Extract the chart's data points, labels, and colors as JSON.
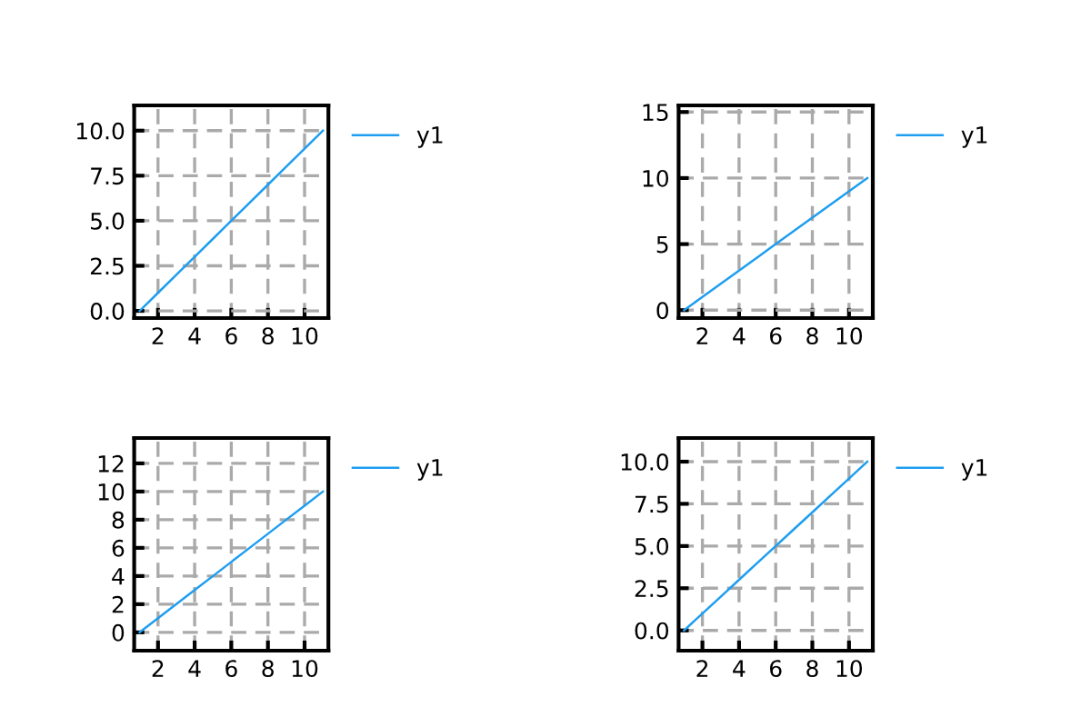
{
  "chart_data": [
    {
      "type": "line",
      "x": [
        1,
        2,
        3,
        4,
        5,
        6,
        7,
        8,
        9,
        10,
        11
      ],
      "series": [
        {
          "name": "y1",
          "color": "#1e9ef0",
          "values": [
            0,
            1,
            2,
            3,
            4,
            5,
            6,
            7,
            8,
            9,
            10
          ]
        }
      ],
      "xlim": [
        0.7,
        11.3
      ],
      "xticks": [
        2,
        4,
        6,
        8,
        10
      ],
      "ylim": [
        -0.4,
        11.4
      ],
      "yticks": [
        {
          "value": 0,
          "label": "0.0"
        },
        {
          "value": 2.5,
          "label": "2.5"
        },
        {
          "value": 5,
          "label": "5.0"
        },
        {
          "value": 7.5,
          "label": "7.5"
        },
        {
          "value": 10,
          "label": "10.0"
        }
      ],
      "grid": true,
      "legend": "right"
    },
    {
      "type": "line",
      "x": [
        1,
        2,
        3,
        4,
        5,
        6,
        7,
        8,
        9,
        10,
        11
      ],
      "series": [
        {
          "name": "y1",
          "color": "#1e9ef0",
          "values": [
            0,
            1,
            2,
            3,
            4,
            5,
            6,
            7,
            8,
            9,
            10
          ]
        }
      ],
      "xlim": [
        0.7,
        11.3
      ],
      "xticks": [
        2,
        4,
        6,
        8,
        10
      ],
      "ylim": [
        -0.6,
        15.5
      ],
      "yticks": [
        0,
        5,
        10,
        15
      ],
      "grid": true,
      "legend": "right"
    },
    {
      "type": "line",
      "x": [
        1,
        2,
        3,
        4,
        5,
        6,
        7,
        8,
        9,
        10,
        11
      ],
      "series": [
        {
          "name": "y1",
          "color": "#1e9ef0",
          "values": [
            0,
            1,
            2,
            3,
            4,
            5,
            6,
            7,
            8,
            9,
            10
          ]
        }
      ],
      "xlim": [
        0.7,
        11.3
      ],
      "xticks": [
        2,
        4,
        6,
        8,
        10
      ],
      "ylim": [
        -1.3,
        13.8
      ],
      "yticks": [
        0,
        2,
        4,
        6,
        8,
        10,
        12
      ],
      "grid": true,
      "legend": "right"
    },
    {
      "type": "line",
      "x": [
        1,
        2,
        3,
        4,
        5,
        6,
        7,
        8,
        9,
        10,
        11
      ],
      "series": [
        {
          "name": "y1",
          "color": "#1e9ef0",
          "values": [
            0,
            1,
            2,
            3,
            4,
            5,
            6,
            7,
            8,
            9,
            10
          ]
        }
      ],
      "xlim": [
        0.7,
        11.3
      ],
      "xticks": [
        2,
        4,
        6,
        8,
        10
      ],
      "ylim": [
        -1.2,
        11.4
      ],
      "yticks": [
        {
          "value": 0,
          "label": "0.0"
        },
        {
          "value": 2.5,
          "label": "2.5"
        },
        {
          "value": 5,
          "label": "5.0"
        },
        {
          "value": 7.5,
          "label": "7.5"
        },
        {
          "value": 10,
          "label": "10.0"
        }
      ],
      "grid": true,
      "legend": "right"
    }
  ]
}
